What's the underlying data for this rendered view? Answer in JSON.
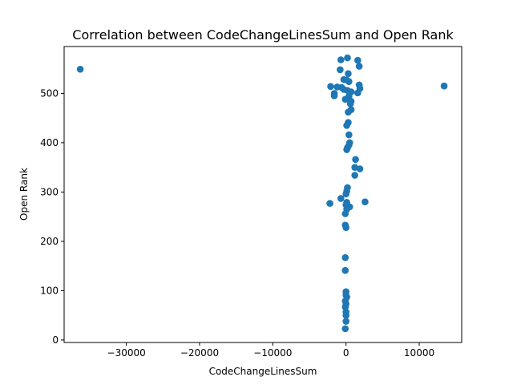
{
  "chart_data": {
    "type": "scatter",
    "title": "Correlation between CodeChangeLinesSum and Open Rank",
    "xlabel": "CodeChangeLinesSum",
    "ylabel": "Open Rank",
    "xlim": [
      -38500,
      15800
    ],
    "ylim": [
      -5,
      595
    ],
    "x_ticks": [
      {
        "value": -30000,
        "label": "−30000"
      },
      {
        "value": -20000,
        "label": "−20000"
      },
      {
        "value": -10000,
        "label": "−10000"
      },
      {
        "value": 0,
        "label": "0"
      },
      {
        "value": 10000,
        "label": "10000"
      }
    ],
    "y_ticks": [
      {
        "value": 0,
        "label": "0"
      },
      {
        "value": 100,
        "label": "100"
      },
      {
        "value": 200,
        "label": "200"
      },
      {
        "value": 300,
        "label": "300"
      },
      {
        "value": 400,
        "label": "400"
      },
      {
        "value": 500,
        "label": "500"
      }
    ],
    "grid": false,
    "marker_color": "#1f77b4",
    "points": [
      {
        "x": -36300,
        "y": 549
      },
      {
        "x": 13400,
        "y": 515
      },
      {
        "x": -700,
        "y": 568
      },
      {
        "x": 200,
        "y": 572
      },
      {
        "x": 1600,
        "y": 567
      },
      {
        "x": 1800,
        "y": 555
      },
      {
        "x": -800,
        "y": 548
      },
      {
        "x": 300,
        "y": 540
      },
      {
        "x": -300,
        "y": 528
      },
      {
        "x": 100,
        "y": 527
      },
      {
        "x": 400,
        "y": 524
      },
      {
        "x": -2100,
        "y": 514
      },
      {
        "x": -1200,
        "y": 513
      },
      {
        "x": -600,
        "y": 512
      },
      {
        "x": 1800,
        "y": 517
      },
      {
        "x": 1900,
        "y": 510
      },
      {
        "x": -300,
        "y": 508
      },
      {
        "x": 200,
        "y": 506
      },
      {
        "x": 700,
        "y": 503
      },
      {
        "x": 1600,
        "y": 501
      },
      {
        "x": -1600,
        "y": 500
      },
      {
        "x": -1600,
        "y": 495
      },
      {
        "x": 400,
        "y": 494
      },
      {
        "x": -100,
        "y": 488
      },
      {
        "x": 700,
        "y": 484
      },
      {
        "x": 600,
        "y": 479
      },
      {
        "x": 700,
        "y": 467
      },
      {
        "x": 300,
        "y": 462
      },
      {
        "x": 300,
        "y": 441
      },
      {
        "x": 100,
        "y": 435
      },
      {
        "x": 400,
        "y": 416
      },
      {
        "x": 500,
        "y": 400
      },
      {
        "x": 400,
        "y": 395
      },
      {
        "x": 200,
        "y": 390
      },
      {
        "x": 100,
        "y": 386
      },
      {
        "x": 1300,
        "y": 366
      },
      {
        "x": 1200,
        "y": 350
      },
      {
        "x": 1900,
        "y": 347
      },
      {
        "x": 1200,
        "y": 334
      },
      {
        "x": 200,
        "y": 309
      },
      {
        "x": 100,
        "y": 302
      },
      {
        "x": 0,
        "y": 296
      },
      {
        "x": -700,
        "y": 287
      },
      {
        "x": -2200,
        "y": 277
      },
      {
        "x": 2600,
        "y": 280
      },
      {
        "x": 100,
        "y": 279
      },
      {
        "x": 0,
        "y": 274
      },
      {
        "x": 500,
        "y": 270
      },
      {
        "x": 100,
        "y": 265
      },
      {
        "x": -100,
        "y": 256
      },
      {
        "x": -100,
        "y": 233
      },
      {
        "x": 0,
        "y": 228
      },
      {
        "x": -100,
        "y": 167
      },
      {
        "x": -100,
        "y": 141
      },
      {
        "x": 0,
        "y": 98
      },
      {
        "x": 0,
        "y": 91
      },
      {
        "x": 100,
        "y": 87
      },
      {
        "x": -100,
        "y": 79
      },
      {
        "x": 0,
        "y": 73
      },
      {
        "x": -100,
        "y": 67
      },
      {
        "x": 0,
        "y": 57
      },
      {
        "x": 0,
        "y": 50
      },
      {
        "x": 0,
        "y": 38
      },
      {
        "x": -100,
        "y": 23
      }
    ]
  }
}
